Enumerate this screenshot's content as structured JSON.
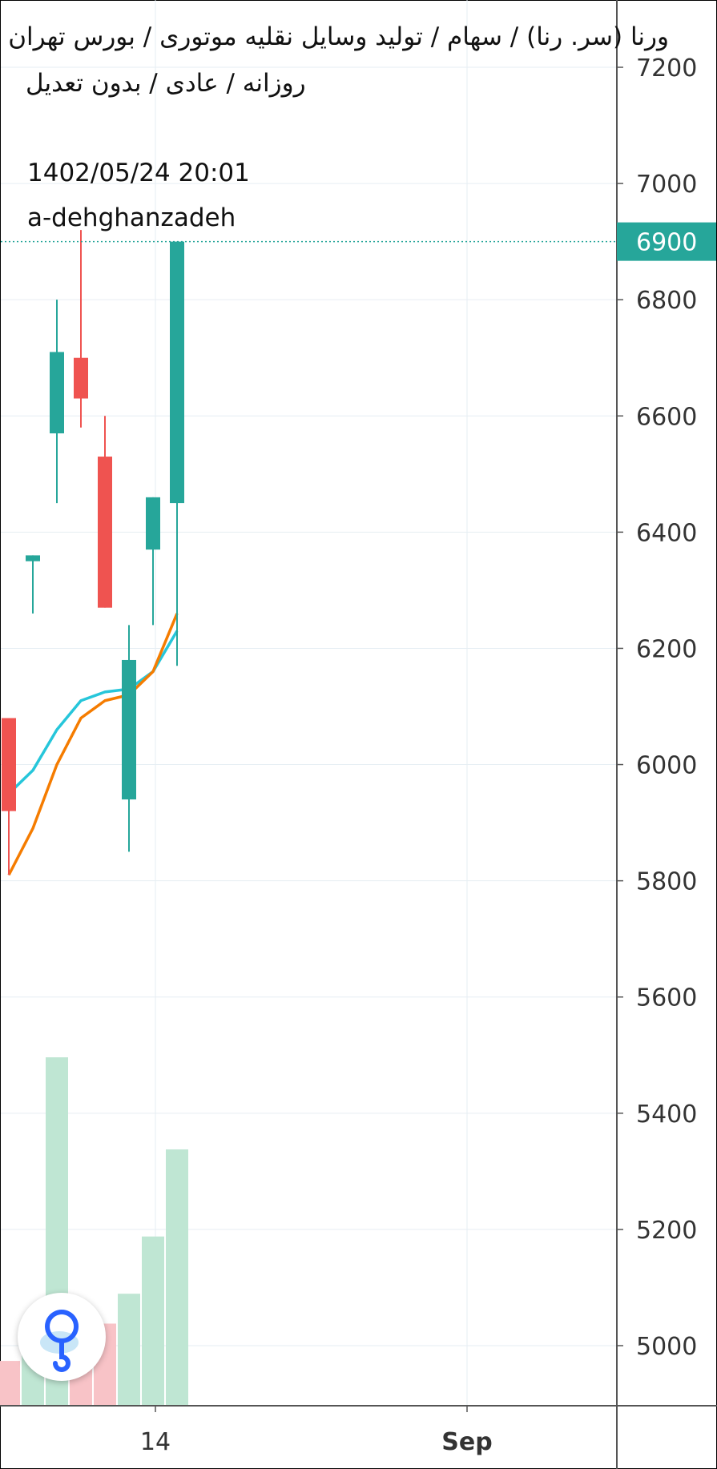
{
  "header": {
    "title": "ورنا (سر. رنا) / سهام / تولید وسایل نقلیه موتوری / بورس تهران",
    "subtitle": "روزانه / عادی / بدون تعدیل",
    "date": "1402/05/24 20:01",
    "author": "a-dehghanzadeh"
  },
  "chart_data": {
    "type": "candlestick",
    "title": "ورنا (سر. رنا) / سهام / تولید وسایل نقلیه موتوری / بورس تهران",
    "y_axis": {
      "position": "right",
      "range": [
        4900,
        7250
      ],
      "ticks": [
        5000,
        5200,
        5400,
        5600,
        5800,
        6000,
        6200,
        6400,
        6600,
        6800,
        7000,
        7200
      ],
      "tick_labels": [
        "5000",
        "5200",
        "5400",
        "5600",
        "5800",
        "6000",
        "6200",
        "6400",
        "6600",
        "6800",
        "7000",
        "7200"
      ]
    },
    "x_axis": {
      "tick_labels": [
        "14",
        "Sep"
      ]
    },
    "last_price": 6900,
    "last_price_label": "6900",
    "candles": [
      {
        "open": 6080,
        "high": 6080,
        "low": 5810,
        "close": 5920
      },
      {
        "open": 6350,
        "high": 6360,
        "low": 6260,
        "close": 6360
      },
      {
        "open": 6570,
        "high": 6800,
        "low": 6450,
        "close": 6710
      },
      {
        "open": 6700,
        "high": 6920,
        "low": 6580,
        "close": 6630
      },
      {
        "open": 6530,
        "high": 6600,
        "low": 6270,
        "close": 6270
      },
      {
        "open": 5940,
        "high": 6240,
        "low": 5850,
        "close": 6180
      },
      {
        "open": 6370,
        "high": 6460,
        "low": 6240,
        "close": 6460
      },
      {
        "open": 6450,
        "high": 6900,
        "low": 6170,
        "close": 6900
      }
    ],
    "moving_averages": [
      {
        "color": "#26c6da",
        "values": [
          5950,
          5990,
          6060,
          6110,
          6125,
          6130,
          6160,
          6230
        ]
      },
      {
        "color": "#f57c00",
        "values": [
          5810,
          5890,
          6000,
          6080,
          6110,
          6120,
          6160,
          6260
        ]
      }
    ],
    "volume": [
      {
        "value": 1.8,
        "direction": "down"
      },
      {
        "value": 2.5,
        "direction": "up"
      },
      {
        "value": 14.0,
        "direction": "up"
      },
      {
        "value": 2.8,
        "direction": "down"
      },
      {
        "value": 3.3,
        "direction": "down"
      },
      {
        "value": 4.5,
        "direction": "up"
      },
      {
        "value": 6.8,
        "direction": "up"
      },
      {
        "value": 10.3,
        "direction": "up"
      }
    ],
    "grid": true,
    "colors": {
      "up": "#26a69a",
      "down": "#ef5350",
      "volume_up": "#bfe6d3",
      "volume_down": "#f8c3c7",
      "last_price_bg": "#26a69a"
    }
  },
  "logo": {
    "icon": "tradingview-logo-icon"
  }
}
